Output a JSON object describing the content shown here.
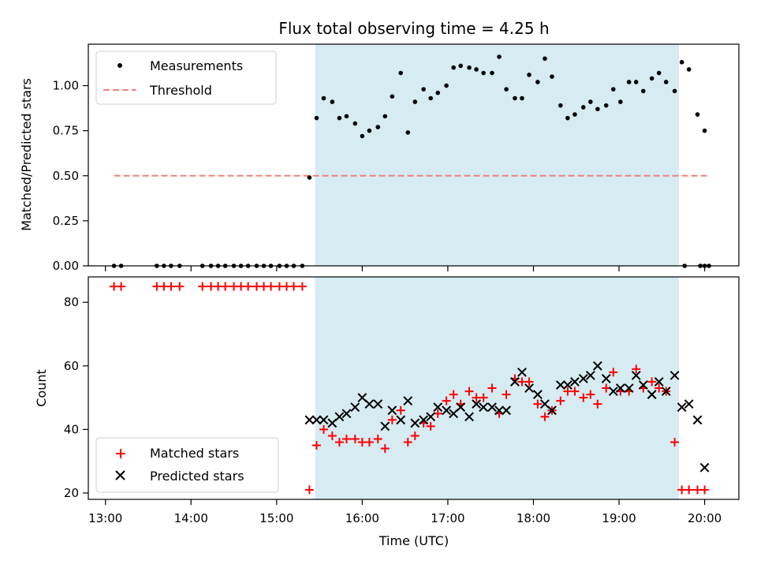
{
  "colors": {
    "span": "#add8e6",
    "threshold": "#f08080",
    "measurement": "#000000",
    "matched": "#ff0000",
    "predicted": "#000000"
  },
  "chart_data": [
    {
      "type": "scatter",
      "title": "Flux total observing time = 4.25 h",
      "xlabel": "",
      "ylabel": "Matched/Predicted stars",
      "xlim": [
        "12:48",
        "20:24"
      ],
      "ylim": [
        0,
        1.23
      ],
      "yticks": [
        "0.00",
        "0.25",
        "0.50",
        "0.75",
        "1.00"
      ],
      "ytick_values": [
        0,
        0.25,
        0.5,
        0.75,
        1.0
      ],
      "highlight_span": [
        "15:27",
        "19:42"
      ],
      "legend": {
        "placement": "upper-left",
        "entries": [
          "Measurements",
          "Threshold"
        ]
      },
      "threshold": {
        "name": "Threshold",
        "value": 0.5,
        "x_range": [
          "13:06",
          "20:03"
        ]
      },
      "series": [
        {
          "name": "Measurements",
          "marker": "dot",
          "points": [
            [
              "13:06",
              0
            ],
            [
              "13:11",
              0
            ],
            [
              "13:36",
              0
            ],
            [
              "13:41",
              0
            ],
            [
              "13:46",
              0
            ],
            [
              "13:52",
              0
            ],
            [
              "14:08",
              0
            ],
            [
              "14:14",
              0
            ],
            [
              "14:19",
              0
            ],
            [
              "14:24",
              0
            ],
            [
              "14:30",
              0
            ],
            [
              "14:35",
              0
            ],
            [
              "14:40",
              0
            ],
            [
              "14:46",
              0
            ],
            [
              "14:51",
              0
            ],
            [
              "14:56",
              0
            ],
            [
              "15:02",
              0
            ],
            [
              "15:07",
              0
            ],
            [
              "15:12",
              0
            ],
            [
              "15:18",
              0
            ],
            [
              "15:23",
              0.49
            ],
            [
              "15:28",
              0.82
            ],
            [
              "15:33",
              0.93
            ],
            [
              "15:39",
              0.91
            ],
            [
              "15:44",
              0.82
            ],
            [
              "15:49",
              0.83
            ],
            [
              "15:55",
              0.79
            ],
            [
              "16:00",
              0.72
            ],
            [
              "16:05",
              0.75
            ],
            [
              "16:11",
              0.77
            ],
            [
              "16:16",
              0.83
            ],
            [
              "16:21",
              0.94
            ],
            [
              "16:27",
              1.07
            ],
            [
              "16:32",
              0.74
            ],
            [
              "16:37",
              0.91
            ],
            [
              "16:43",
              0.98
            ],
            [
              "16:48",
              0.93
            ],
            [
              "16:53",
              0.96
            ],
            [
              "16:59",
              1.0
            ],
            [
              "17:04",
              1.1
            ],
            [
              "17:09",
              1.11
            ],
            [
              "17:15",
              1.1
            ],
            [
              "17:20",
              1.09
            ],
            [
              "17:25",
              1.07
            ],
            [
              "17:31",
              1.07
            ],
            [
              "17:36",
              1.16
            ],
            [
              "17:41",
              0.98
            ],
            [
              "17:47",
              0.93
            ],
            [
              "17:52",
              0.93
            ],
            [
              "17:57",
              1.06
            ],
            [
              "18:03",
              1.02
            ],
            [
              "18:08",
              1.15
            ],
            [
              "18:13",
              1.05
            ],
            [
              "18:19",
              0.89
            ],
            [
              "18:24",
              0.82
            ],
            [
              "18:29",
              0.84
            ],
            [
              "18:35",
              0.88
            ],
            [
              "18:40",
              0.91
            ],
            [
              "18:45",
              0.87
            ],
            [
              "18:51",
              0.89
            ],
            [
              "18:56",
              0.98
            ],
            [
              "19:01",
              0.91
            ],
            [
              "19:07",
              1.02
            ],
            [
              "19:12",
              1.02
            ],
            [
              "19:17",
              0.97
            ],
            [
              "19:23",
              1.04
            ],
            [
              "19:28",
              1.07
            ],
            [
              "19:33",
              1.02
            ],
            [
              "19:39",
              0.97
            ],
            [
              "19:44",
              1.13
            ],
            [
              "19:49",
              1.09
            ],
            [
              "19:55",
              0.84
            ],
            [
              "20:00",
              0.75
            ],
            [
              "19:46",
              0
            ],
            [
              "19:57",
              0
            ],
            [
              "20:00",
              0
            ],
            [
              "20:03",
              0
            ]
          ]
        }
      ]
    },
    {
      "type": "scatter",
      "title": "",
      "xlabel": "Time (UTC)",
      "ylabel": "Count",
      "xlim": [
        "12:48",
        "20:24"
      ],
      "ylim": [
        18,
        88
      ],
      "yticks": [
        "20",
        "40",
        "60",
        "80"
      ],
      "ytick_values": [
        20,
        40,
        60,
        80
      ],
      "xticks": [
        "13:00",
        "14:00",
        "15:00",
        "16:00",
        "17:00",
        "18:00",
        "19:00",
        "20:00"
      ],
      "highlight_span": [
        "15:27",
        "19:42"
      ],
      "legend": {
        "placement": "lower-left",
        "entries": [
          "Matched stars",
          "Predicted stars"
        ]
      },
      "series": [
        {
          "name": "Matched stars",
          "marker": "plus",
          "points": [
            [
              "13:06",
              85
            ],
            [
              "13:11",
              85
            ],
            [
              "13:36",
              85
            ],
            [
              "13:41",
              85
            ],
            [
              "13:46",
              85
            ],
            [
              "13:52",
              85
            ],
            [
              "14:08",
              85
            ],
            [
              "14:14",
              85
            ],
            [
              "14:19",
              85
            ],
            [
              "14:24",
              85
            ],
            [
              "14:30",
              85
            ],
            [
              "14:35",
              85
            ],
            [
              "14:40",
              85
            ],
            [
              "14:46",
              85
            ],
            [
              "14:51",
              85
            ],
            [
              "14:56",
              85
            ],
            [
              "15:02",
              85
            ],
            [
              "15:07",
              85
            ],
            [
              "15:12",
              85
            ],
            [
              "15:18",
              85
            ],
            [
              "15:23",
              21
            ],
            [
              "15:28",
              35
            ],
            [
              "15:33",
              40
            ],
            [
              "15:39",
              38
            ],
            [
              "15:44",
              36
            ],
            [
              "15:49",
              37
            ],
            [
              "15:55",
              37
            ],
            [
              "16:00",
              36
            ],
            [
              "16:05",
              36
            ],
            [
              "16:11",
              37
            ],
            [
              "16:16",
              34
            ],
            [
              "16:21",
              43
            ],
            [
              "16:27",
              46
            ],
            [
              "16:32",
              36
            ],
            [
              "16:37",
              38
            ],
            [
              "16:43",
              42
            ],
            [
              "16:48",
              41
            ],
            [
              "16:53",
              45
            ],
            [
              "16:59",
              49
            ],
            [
              "17:04",
              51
            ],
            [
              "17:09",
              48
            ],
            [
              "17:15",
              52
            ],
            [
              "17:20",
              50
            ],
            [
              "17:25",
              50
            ],
            [
              "17:31",
              53
            ],
            [
              "17:36",
              45
            ],
            [
              "17:41",
              51
            ],
            [
              "17:47",
              56
            ],
            [
              "17:52",
              55
            ],
            [
              "17:57",
              55
            ],
            [
              "18:03",
              48
            ],
            [
              "18:08",
              44
            ],
            [
              "18:13",
              46
            ],
            [
              "18:19",
              49
            ],
            [
              "18:24",
              52
            ],
            [
              "18:29",
              52
            ],
            [
              "18:35",
              50
            ],
            [
              "18:40",
              51
            ],
            [
              "18:45",
              48
            ],
            [
              "18:51",
              53
            ],
            [
              "18:56",
              58
            ],
            [
              "19:01",
              52
            ],
            [
              "19:07",
              52
            ],
            [
              "19:12",
              59
            ],
            [
              "19:17",
              53
            ],
            [
              "19:23",
              55
            ],
            [
              "19:28",
              53
            ],
            [
              "19:33",
              52
            ],
            [
              "19:39",
              36
            ],
            [
              "19:44",
              21
            ],
            [
              "19:49",
              21
            ],
            [
              "19:55",
              21
            ],
            [
              "20:00",
              21
            ]
          ]
        },
        {
          "name": "Predicted stars",
          "marker": "x",
          "points": [
            [
              "15:23",
              43
            ],
            [
              "15:28",
              43
            ],
            [
              "15:33",
              43
            ],
            [
              "15:39",
              42
            ],
            [
              "15:44",
              44
            ],
            [
              "15:49",
              45
            ],
            [
              "15:55",
              47
            ],
            [
              "16:00",
              50
            ],
            [
              "16:05",
              48
            ],
            [
              "16:11",
              48
            ],
            [
              "16:16",
              41
            ],
            [
              "16:21",
              46
            ],
            [
              "16:27",
              43
            ],
            [
              "16:32",
              49
            ],
            [
              "16:37",
              42
            ],
            [
              "16:43",
              43
            ],
            [
              "16:48",
              44
            ],
            [
              "16:53",
              47
            ],
            [
              "16:59",
              46
            ],
            [
              "17:04",
              45
            ],
            [
              "17:09",
              47
            ],
            [
              "17:15",
              44
            ],
            [
              "17:20",
              48
            ],
            [
              "17:25",
              47
            ],
            [
              "17:31",
              47
            ],
            [
              "17:36",
              46
            ],
            [
              "17:41",
              46
            ],
            [
              "17:47",
              55
            ],
            [
              "17:52",
              58
            ],
            [
              "17:57",
              53
            ],
            [
              "18:03",
              51
            ],
            [
              "18:08",
              48
            ],
            [
              "18:13",
              46
            ],
            [
              "18:19",
              54
            ],
            [
              "18:24",
              54
            ],
            [
              "18:29",
              55
            ],
            [
              "18:35",
              56
            ],
            [
              "18:40",
              57
            ],
            [
              "18:45",
              60
            ],
            [
              "18:51",
              56
            ],
            [
              "18:56",
              52
            ],
            [
              "19:01",
              53
            ],
            [
              "19:07",
              53
            ],
            [
              "19:12",
              57
            ],
            [
              "19:17",
              54
            ],
            [
              "19:23",
              51
            ],
            [
              "19:28",
              55
            ],
            [
              "19:33",
              52
            ],
            [
              "19:39",
              57
            ],
            [
              "19:44",
              47
            ],
            [
              "19:49",
              48
            ],
            [
              "19:55",
              43
            ],
            [
              "20:00",
              28
            ]
          ]
        }
      ]
    }
  ]
}
